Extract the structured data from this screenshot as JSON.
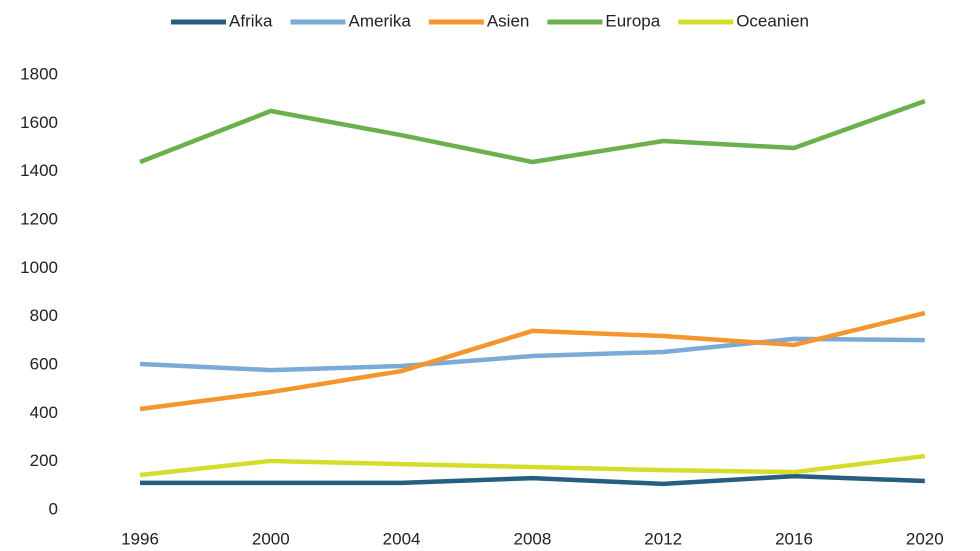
{
  "chart_data": {
    "type": "line",
    "categories": [
      "1996",
      "2000",
      "2004",
      "2008",
      "2012",
      "2016",
      "2020"
    ],
    "series": [
      {
        "name": "Afrika",
        "color": "#255e7e",
        "values": [
          112,
          112,
          112,
          132,
          108,
          140,
          120
        ]
      },
      {
        "name": "Amerika",
        "color": "#7aaad6",
        "values": [
          604,
          579,
          596,
          637,
          654,
          708,
          703
        ]
      },
      {
        "name": "Asien",
        "color": "#f5952d",
        "values": [
          418,
          488,
          575,
          741,
          720,
          683,
          815
        ]
      },
      {
        "name": "Europa",
        "color": "#6ab04c",
        "values": [
          1440,
          1651,
          1551,
          1440,
          1527,
          1498,
          1692
        ]
      },
      {
        "name": "Oceanien",
        "color": "#d4de2a",
        "values": [
          145,
          203,
          190,
          178,
          165,
          157,
          223
        ]
      }
    ],
    "ylim": [
      0,
      1800
    ],
    "yticks": [
      0,
      200,
      400,
      600,
      800,
      1000,
      1200,
      1400,
      1600,
      1800
    ],
    "grid": false,
    "legend": "top"
  }
}
